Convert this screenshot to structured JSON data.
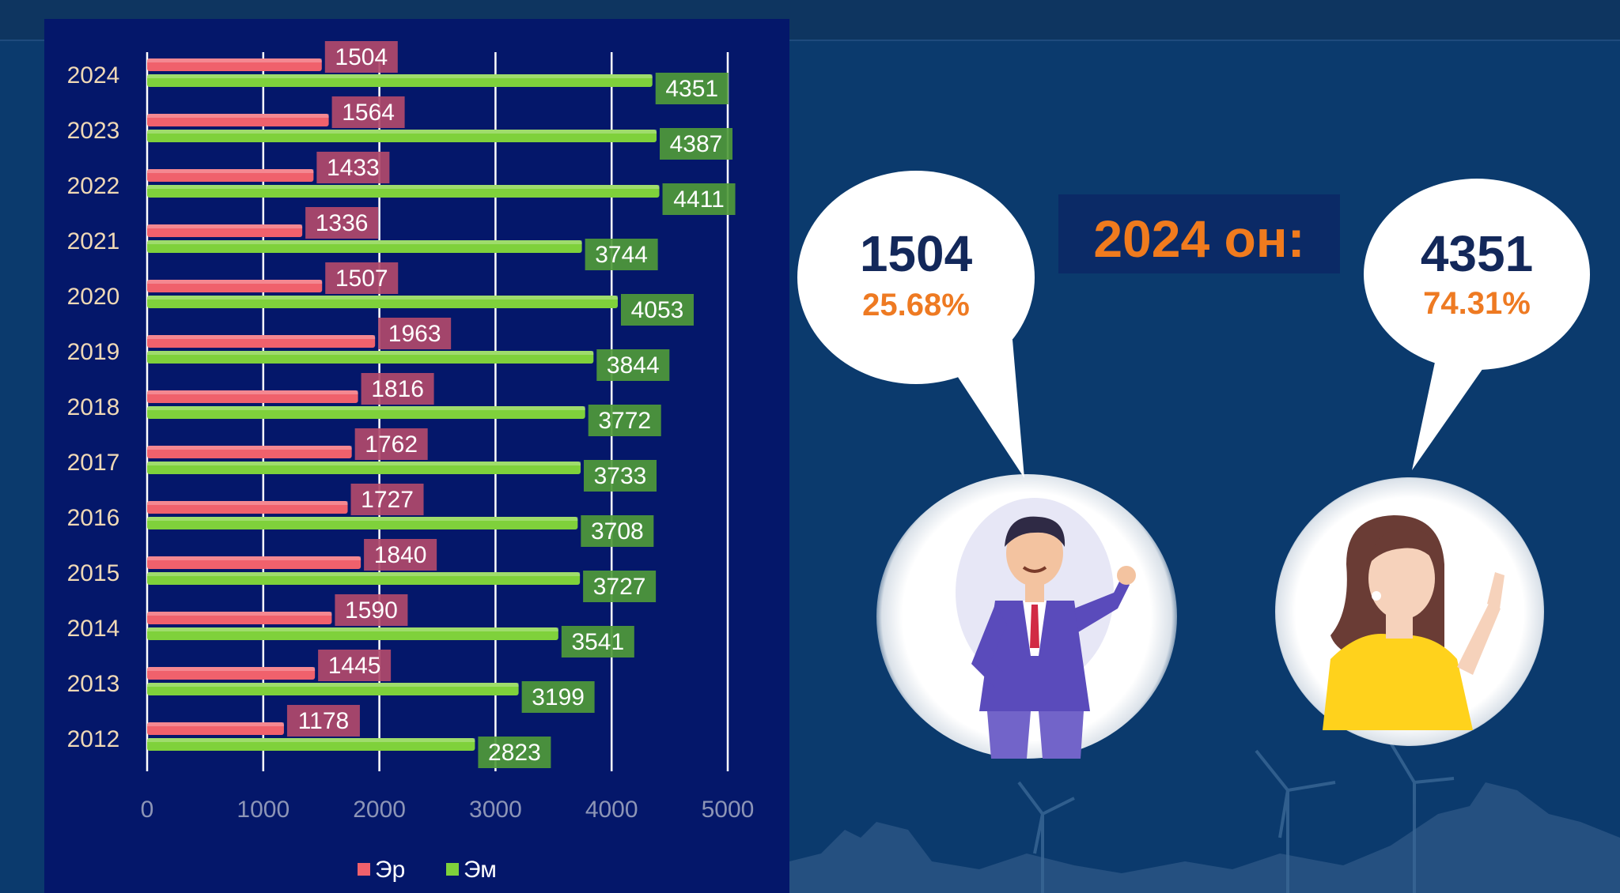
{
  "chart_data": {
    "type": "bar",
    "categories": [
      "2024",
      "2023",
      "2022",
      "2021",
      "2020",
      "2019",
      "2018",
      "2017",
      "2016",
      "2015",
      "2014",
      "2013",
      "2012"
    ],
    "series": [
      {
        "name": "Эр",
        "color": "#f0616c",
        "label_bg": "#b14a6b",
        "values": [
          1504,
          1564,
          1433,
          1336,
          1507,
          1963,
          1816,
          1762,
          1727,
          1840,
          1590,
          1445,
          1178
        ]
      },
      {
        "name": "Эм",
        "color": "#7fd13b",
        "label_bg": "#4f9a3a",
        "values": [
          4351,
          4387,
          4411,
          3744,
          4053,
          3844,
          3772,
          3733,
          3708,
          3727,
          3541,
          3199,
          2823
        ]
      }
    ],
    "x_ticks": [
      0,
      1000,
      2000,
      3000,
      4000,
      5000
    ],
    "xlim": [
      0,
      5000
    ],
    "legend_position": "bottom",
    "grid": true
  },
  "summary": {
    "year_label": "2024 он:",
    "male": {
      "count": "1504",
      "percent": "25.68%",
      "icon": "businessman-avatar"
    },
    "female": {
      "count": "4351",
      "percent": "74.31%",
      "icon": "woman-avatar"
    }
  },
  "colors": {
    "background": "#0b3a6d",
    "panel": "#04176a",
    "accent": "#f07b1e",
    "count_text": "#13285a"
  }
}
